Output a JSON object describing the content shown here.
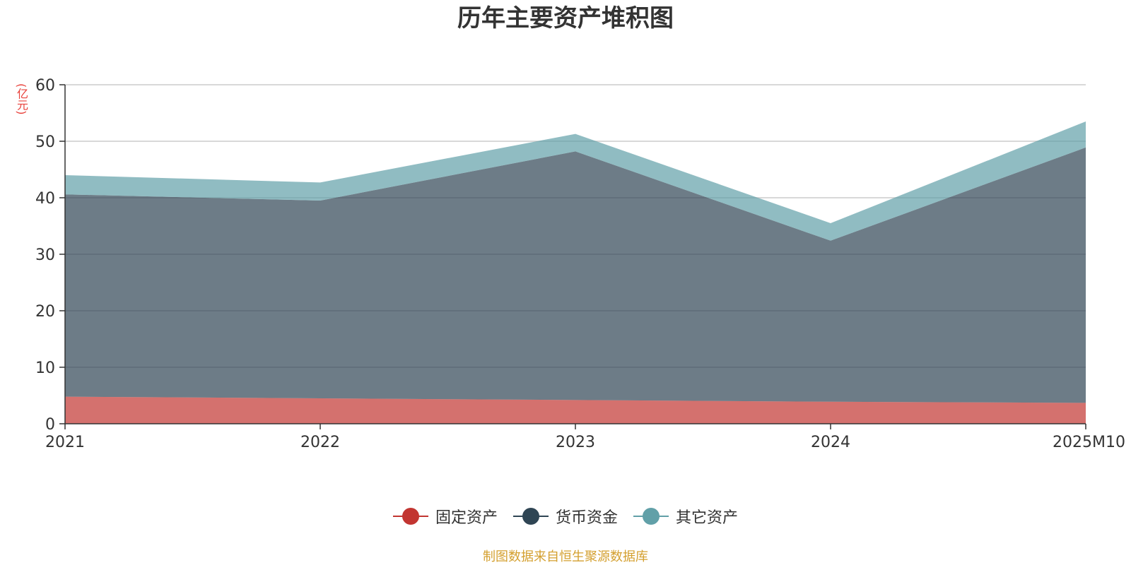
{
  "chart_data": {
    "type": "area",
    "stacked": true,
    "title": "历年主要资产堆积图",
    "unit_label": "(亿元)",
    "categories": [
      "2021",
      "2022",
      "2023",
      "2024",
      "2025M10"
    ],
    "ylim": [
      0,
      60
    ],
    "yticks": [
      0,
      10,
      20,
      30,
      40,
      50,
      60
    ],
    "grid": true,
    "legend_position": "bottom",
    "series": [
      {
        "name": "固定资产",
        "values": [
          4.8,
          4.5,
          4.2,
          3.9,
          3.7
        ],
        "color": "#c23531"
      },
      {
        "name": "货币资金",
        "values": [
          35.8,
          35.0,
          44.0,
          28.5,
          45.2
        ],
        "color": "#2f4554"
      },
      {
        "name": "其它资产",
        "values": [
          3.4,
          3.2,
          3.1,
          3.1,
          4.6
        ],
        "color": "#61a0a8"
      }
    ]
  },
  "source_text": "制图数据来自恒生聚源数据库"
}
